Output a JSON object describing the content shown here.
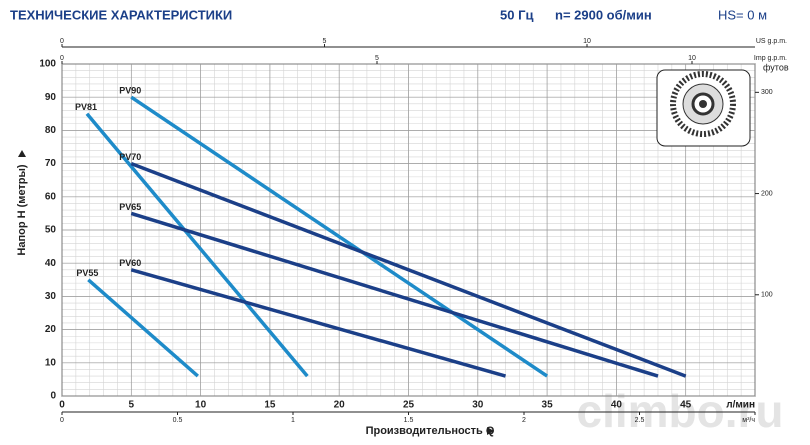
{
  "header": {
    "title": "ТЕХНИЧЕСКИЕ ХАРАКТЕРИСТИКИ",
    "frequency": "50 Гц",
    "speed": "n= 2900 об/мин",
    "hs": "HS= 0 м"
  },
  "watermark": "climbo.ru",
  "chart_data": {
    "type": "line",
    "x_label": "Производительность Q",
    "y_label": "Напор H   (метры)",
    "xlim": [
      0,
      50
    ],
    "ylim": [
      0,
      100
    ],
    "xticks": [
      0,
      5,
      10,
      15,
      20,
      25,
      30,
      35,
      40,
      45,
      {
        "value": 50,
        "label": "л/мин"
      }
    ],
    "yticks": [
      0,
      10,
      20,
      30,
      40,
      50,
      60,
      70,
      80,
      90,
      100
    ],
    "grid": true,
    "minor_grid": {
      "x": 1,
      "y": 2
    },
    "series": [
      {
        "name": "PV90",
        "color": "#1e8bc9",
        "x": [
          5,
          35
        ],
        "values": [
          90,
          6
        ]
      },
      {
        "name": "PV81",
        "color": "#1e8bc9",
        "x": [
          1.8,
          17.7
        ],
        "values": [
          85,
          6
        ]
      },
      {
        "name": "PV70",
        "color": "#1b3f88",
        "x": [
          5,
          45
        ],
        "values": [
          70,
          6
        ]
      },
      {
        "name": "PV65",
        "color": "#1b3f88",
        "x": [
          5,
          43
        ],
        "values": [
          55,
          6
        ]
      },
      {
        "name": "PV60",
        "color": "#1b3f88",
        "x": [
          5,
          32
        ],
        "values": [
          38,
          6
        ]
      },
      {
        "name": "PV55",
        "color": "#1e8bc9",
        "x": [
          1.9,
          9.8
        ],
        "values": [
          35,
          6
        ]
      }
    ],
    "y2_label": "футов",
    "y2lim": [
      0,
      328
    ],
    "y2ticks": [
      100,
      200,
      300
    ],
    "top_axes": [
      {
        "label": "US g.p.m.",
        "lim": [
          0,
          13.2
        ],
        "ticks": [
          0,
          5,
          10
        ]
      },
      {
        "label": "Imp g.p.m.",
        "lim": [
          0,
          11
        ],
        "ticks": [
          0,
          5,
          10
        ]
      }
    ],
    "bottom_axis2": {
      "lim": [
        0,
        3
      ],
      "ticks": [
        0,
        0.5,
        1,
        1.5,
        2,
        2.5,
        {
          "value": 3,
          "label": "м³/ч"
        }
      ]
    }
  }
}
